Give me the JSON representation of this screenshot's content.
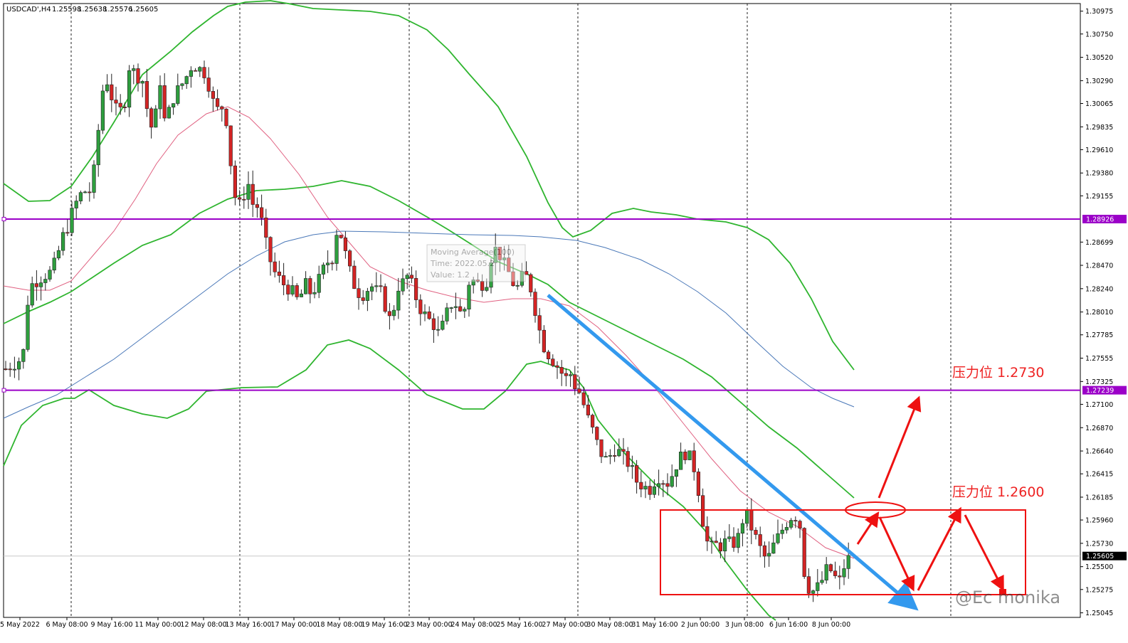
{
  "chart_data": {
    "type": "candlestick",
    "header": {
      "symbol": "USDCAD',H4",
      "open": "1.25598",
      "high": "1.25638",
      "low": "1.25576",
      "close": "1.25605"
    },
    "y_axis": {
      "ticks": [
        "1.30975",
        "1.30750",
        "1.30520",
        "1.30290",
        "1.30065",
        "1.29835",
        "1.29610",
        "1.29380",
        "1.29155",
        "1.28926",
        "1.28699",
        "1.28470",
        "1.28240",
        "1.28010",
        "1.27785",
        "1.27555",
        "1.27325",
        "1.27239",
        "1.27100",
        "1.26870",
        "1.26640",
        "1.26415",
        "1.26185",
        "1.25960",
        "1.25730",
        "1.25605",
        "1.25500",
        "1.25275",
        "1.25045"
      ],
      "range": [
        1.25,
        1.3105
      ]
    },
    "x_axis": {
      "labels": [
        "5 May 2022",
        "6 May 08:00",
        "9 May 16:00",
        "11 May 00:00",
        "12 May 08:00",
        "13 May 16:00",
        "17 May 00:00",
        "18 May 08:00",
        "19 May 16:00",
        "23 May 00:00",
        "24 May 08:00",
        "25 May 16:00",
        "27 May 00:00",
        "30 May 08:00",
        "31 May 16:00",
        "2 Jun 00:00",
        "3 Jun 08:00",
        "6 Jun 16:00",
        "8 Jun 00:00"
      ]
    },
    "horizontal_levels": [
      {
        "value": 1.28926,
        "label": "1.28926",
        "color": "#9b00c8"
      },
      {
        "value": 1.27239,
        "label": "1.27239",
        "color": "#9b00c8"
      }
    ],
    "current_price": {
      "value": 1.25605,
      "label": "1.25605"
    },
    "tooltip": {
      "line1": "Moving Average(100)",
      "line2": "Time: 2022.05.2",
      "line3": "Value: 1.2"
    },
    "annotations": [
      {
        "text": "压力位 1.2730",
        "color": "#ee2222"
      },
      {
        "text": "压力位 1.2600",
        "color": "#ee2222"
      }
    ],
    "watermark": "@Ec monika",
    "colors": {
      "bull": "#2e9e3e",
      "bear": "#d42424",
      "bollinger": "#2fb52f",
      "ma_fast": "#e06080",
      "ma_slow": "#4a78b8",
      "trend_arrow": "#3399ee",
      "drawing": "#ee1111"
    }
  }
}
